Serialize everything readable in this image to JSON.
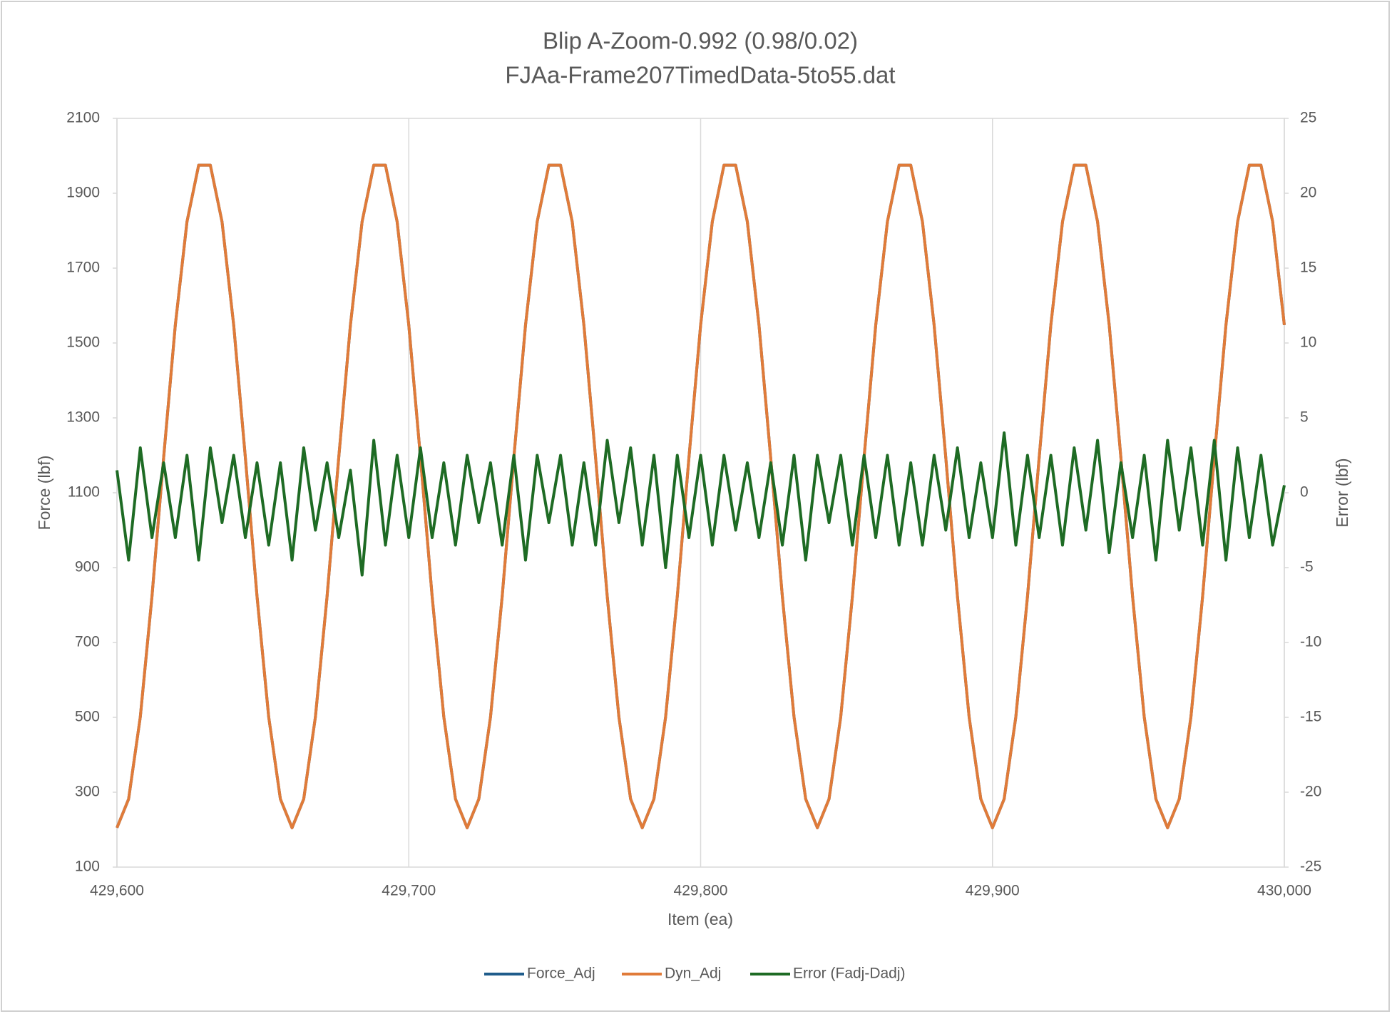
{
  "chart_data": {
    "type": "line",
    "title": "Blip A-Zoom-0.992 (0.98/0.02)",
    "subtitle": "FJAa-Frame207TimedData-5to55.dat",
    "x_label": "Item (ea)",
    "y_label": "Force (lbf)",
    "y2_label": "Error (lbf)",
    "x": [
      429600,
      429604,
      429608,
      429612,
      429616,
      429620,
      429624,
      429628,
      429632,
      429636,
      429640,
      429644,
      429648,
      429652,
      429656,
      429660,
      429664,
      429668,
      429672,
      429676,
      429680,
      429684,
      429688,
      429692,
      429696,
      429700,
      429704,
      429708,
      429712,
      429716,
      429720,
      429724,
      429728,
      429732,
      429736,
      429740,
      429744,
      429748,
      429752,
      429756,
      429760,
      429764,
      429768,
      429772,
      429776,
      429780,
      429784,
      429788,
      429792,
      429796,
      429800,
      429804,
      429808,
      429812,
      429816,
      429820,
      429824,
      429828,
      429832,
      429836,
      429840,
      429844,
      429848,
      429852,
      429856,
      429860,
      429864,
      429868,
      429872,
      429876,
      429880,
      429884,
      429888,
      429892,
      429896,
      429900,
      429904,
      429908,
      429912,
      429916,
      429920,
      429924,
      429928,
      429932,
      429936,
      429940,
      429944,
      429948,
      429952,
      429956,
      429960,
      429964,
      429968,
      429972,
      429976,
      429980,
      429984,
      429988,
      429992,
      429996,
      430000
    ],
    "series": [
      {
        "name": "Force_Adj",
        "color": "#1f5c8b",
        "axis": "y",
        "values": [
          205,
          282,
          501,
          823,
          1194,
          1548,
          1824,
          1975,
          1975,
          1824,
          1548,
          1194,
          823,
          501,
          282,
          205,
          282,
          501,
          823,
          1194,
          1548,
          1824,
          1975,
          1975,
          1824,
          1548,
          1194,
          823,
          501,
          282,
          205,
          282,
          501,
          823,
          1194,
          1548,
          1824,
          1975,
          1975,
          1824,
          1548,
          1194,
          823,
          501,
          282,
          205,
          282,
          501,
          823,
          1194,
          1548,
          1824,
          1975,
          1975,
          1824,
          1548,
          1194,
          823,
          501,
          282,
          205,
          282,
          501,
          823,
          1194,
          1548,
          1824,
          1975,
          1975,
          1824,
          1548,
          1194,
          823,
          501,
          282,
          205,
          282,
          501,
          823,
          1194,
          1548,
          1824,
          1975,
          1975,
          1824,
          1548,
          1194,
          823,
          501,
          282,
          205,
          282,
          501,
          823,
          1194,
          1548,
          1824,
          1975,
          1975,
          1824,
          1548
        ]
      },
      {
        "name": "Dyn_Adj",
        "color": "#e07b39",
        "axis": "y",
        "values": [
          205,
          282,
          501,
          823,
          1194,
          1548,
          1824,
          1975,
          1975,
          1824,
          1548,
          1194,
          823,
          501,
          282,
          205,
          282,
          501,
          823,
          1194,
          1548,
          1824,
          1975,
          1975,
          1824,
          1548,
          1194,
          823,
          501,
          282,
          205,
          282,
          501,
          823,
          1194,
          1548,
          1824,
          1975,
          1975,
          1824,
          1548,
          1194,
          823,
          501,
          282,
          205,
          282,
          501,
          823,
          1194,
          1548,
          1824,
          1975,
          1975,
          1824,
          1548,
          1194,
          823,
          501,
          282,
          205,
          282,
          501,
          823,
          1194,
          1548,
          1824,
          1975,
          1975,
          1824,
          1548,
          1194,
          823,
          501,
          282,
          205,
          282,
          501,
          823,
          1194,
          1548,
          1824,
          1975,
          1975,
          1824,
          1548,
          1194,
          823,
          501,
          282,
          205,
          282,
          501,
          823,
          1194,
          1548,
          1824,
          1975,
          1975,
          1824,
          1548
        ]
      },
      {
        "name": "Error (Fadj-Dadj)",
        "color": "#1e6b24",
        "axis": "y2",
        "values": [
          1.5,
          -4.5,
          3,
          -3,
          2,
          -3,
          2.5,
          -4.5,
          3,
          -2,
          2.5,
          -3,
          2,
          -3.5,
          2,
          -4.5,
          3,
          -2.5,
          2,
          -3,
          1.5,
          -5.5,
          3.5,
          -3.5,
          2.5,
          -3,
          3,
          -3,
          2,
          -3.5,
          2.5,
          -2,
          2,
          -3.5,
          2.5,
          -4.5,
          2.5,
          -2,
          2.5,
          -3.5,
          2,
          -3.5,
          3.5,
          -2,
          3,
          -3.5,
          2.5,
          -5,
          2.5,
          -3,
          2.5,
          -3.5,
          2.5,
          -2.5,
          2,
          -3,
          2,
          -3.5,
          2.5,
          -4.5,
          2.5,
          -2,
          2.5,
          -3.5,
          2.5,
          -3,
          2.5,
          -3.5,
          2,
          -3.5,
          2.5,
          -2.5,
          3,
          -3,
          2,
          -3,
          4,
          -3.5,
          2.5,
          -3,
          2.5,
          -3.5,
          3,
          -2.5,
          3.5,
          -4,
          2,
          -3,
          2.5,
          -4.5,
          3.5,
          -2.5,
          3,
          -3.5,
          3.5,
          -4.5,
          3,
          -3,
          2.5,
          -3.5,
          0.5
        ]
      }
    ],
    "xlim": [
      429600,
      430000
    ],
    "xticks": [
      {
        "value": 429600,
        "label": "429,600"
      },
      {
        "value": 429700,
        "label": "429,700"
      },
      {
        "value": 429800,
        "label": "429,800"
      },
      {
        "value": 429900,
        "label": "429,900"
      },
      {
        "value": 430000,
        "label": "430,000"
      }
    ],
    "ylim": [
      100,
      2100
    ],
    "yticks": [
      100,
      300,
      500,
      700,
      900,
      1100,
      1300,
      1500,
      1700,
      1900,
      2100
    ],
    "y2lim": [
      -25,
      25
    ],
    "y2ticks": [
      -25,
      -20,
      -15,
      -10,
      -5,
      0,
      5,
      10,
      15,
      20,
      25
    ],
    "xgrid": true,
    "legend": "bottom"
  }
}
